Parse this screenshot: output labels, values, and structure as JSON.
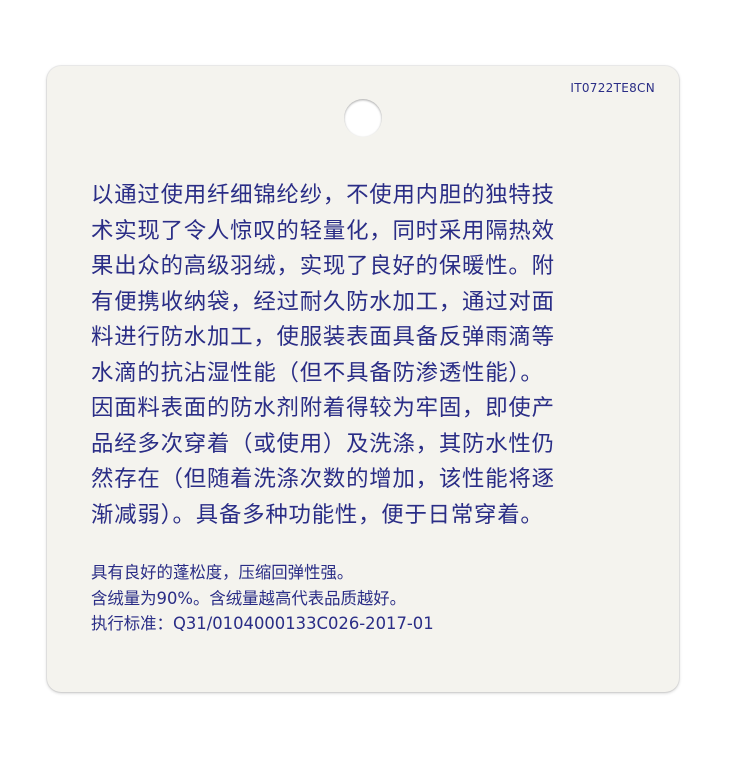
{
  "tag": {
    "code": "IT0722TE8CN",
    "description_lines": [
      "以通过使用纤细锦纶纱，不使用内胆的独特技",
      "术实现了令人惊叹的轻量化，同时采用隔热效",
      "果出众的高级羽绒，实现了良好的保暖性。附",
      "有便携收纳袋，经过耐久防水加工，通过对面",
      "料进行防水加工，使服装表面具备反弹雨滴等",
      "水滴的抗沾湿性能（但不具备防渗透性能）。",
      "因面料表面的防水剂附着得较为牢固，即使产",
      "品经多次穿着（或使用）及洗涤，其防水性仍",
      "然存在（但随着洗涤次数的增加，该性能将逐",
      "渐减弱）。具备多种功能性，便于日常穿着。"
    ],
    "notes": [
      "具有良好的蓬松度，压缩回弹性强。",
      "含绒量为90%。含绒量越高代表品质越好。",
      "执行标准：Q31/0104000133C026-2017-01"
    ],
    "ink_color": "#2a2d86",
    "card_color": "#f4f3ee"
  }
}
